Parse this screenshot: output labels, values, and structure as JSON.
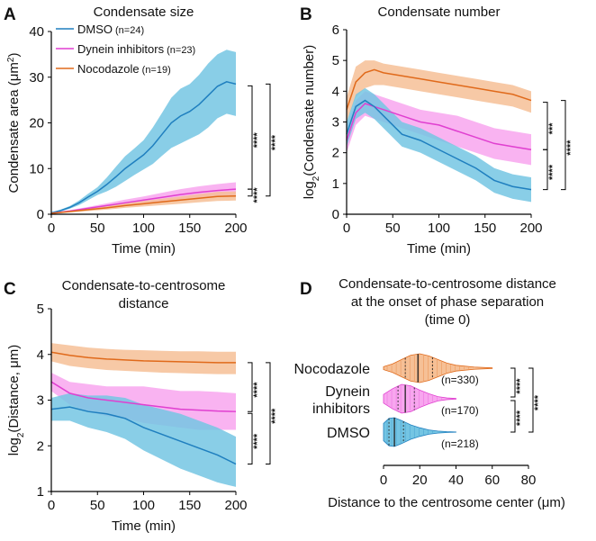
{
  "figure": {
    "colors": {
      "dmso": "#1f7fbf",
      "dmso_fill": "#74c5e3",
      "dynein": "#e03fd0",
      "dynein_fill": "#f8a6ef",
      "noco": "#e06a1b",
      "noco_fill": "#f6c096"
    }
  },
  "chart_data": [
    {
      "panel": "A",
      "type": "line",
      "title": "Condensate size",
      "xlabel": "Time (min)",
      "ylabel": "Condensate area (μm²)",
      "xlim": [
        0,
        200
      ],
      "ylim": [
        0,
        40
      ],
      "xticks": [
        "0",
        "50",
        "100",
        "150",
        "200"
      ],
      "yticks": [
        "0",
        "10",
        "20",
        "30",
        "40"
      ],
      "legend": [
        {
          "name": "DMSO",
          "n": "(n=24)",
          "color": "dmso"
        },
        {
          "name": "Dynein inhibitors",
          "n": "(n=23)",
          "color": "dynein"
        },
        {
          "name": "Nocodazole",
          "n": "(n=19)",
          "color": "noco"
        }
      ],
      "series": [
        {
          "name": "DMSO",
          "color": "dmso",
          "fill": "dmso_fill",
          "x": [
            0,
            10,
            20,
            30,
            40,
            50,
            60,
            70,
            80,
            90,
            100,
            110,
            120,
            130,
            140,
            150,
            160,
            170,
            180,
            190,
            200
          ],
          "mean": [
            0.3,
            0.8,
            1.5,
            2.5,
            3.8,
            5.0,
            6.5,
            8.2,
            10.0,
            11.5,
            13.0,
            15.0,
            17.5,
            20.0,
            21.5,
            22.5,
            24.0,
            26.0,
            28.0,
            29.0,
            28.5
          ],
          "lower": [
            0.2,
            0.6,
            1.2,
            2.0,
            3.1,
            4.2,
            5.0,
            6.0,
            7.3,
            8.6,
            9.8,
            11.0,
            12.8,
            14.5,
            15.5,
            16.5,
            17.5,
            19.0,
            21.0,
            22.0,
            21.5
          ],
          "upper": [
            0.4,
            1.0,
            1.8,
            3.0,
            4.5,
            5.9,
            8.0,
            10.4,
            12.7,
            14.4,
            16.2,
            19.0,
            22.2,
            25.5,
            27.5,
            28.5,
            30.5,
            33.0,
            35.0,
            36.0,
            35.5
          ]
        },
        {
          "name": "Dynein inhibitors",
          "color": "dynein",
          "fill": "dynein_fill",
          "x": [
            0,
            20,
            40,
            60,
            80,
            100,
            120,
            140,
            160,
            180,
            200
          ],
          "mean": [
            0.2,
            0.7,
            1.3,
            1.9,
            2.5,
            3.1,
            3.7,
            4.3,
            4.8,
            5.2,
            5.5
          ],
          "lower": [
            0.1,
            0.5,
            1.0,
            1.4,
            1.8,
            2.3,
            2.7,
            3.1,
            3.5,
            3.8,
            4.0
          ],
          "upper": [
            0.3,
            0.9,
            1.6,
            2.4,
            3.2,
            3.9,
            4.7,
            5.5,
            6.1,
            6.6,
            7.0
          ]
        },
        {
          "name": "Nocodazole",
          "color": "noco",
          "fill": "noco_fill",
          "x": [
            0,
            20,
            40,
            60,
            80,
            100,
            120,
            140,
            160,
            180,
            200
          ],
          "mean": [
            0.2,
            0.6,
            1.0,
            1.4,
            1.9,
            2.3,
            2.7,
            3.1,
            3.5,
            3.9,
            4.0
          ],
          "lower": [
            0.1,
            0.4,
            0.7,
            1.0,
            1.4,
            1.7,
            2.0,
            2.3,
            2.6,
            2.9,
            3.0
          ],
          "upper": [
            0.3,
            0.8,
            1.3,
            1.8,
            2.4,
            2.9,
            3.4,
            3.9,
            4.4,
            4.9,
            5.0
          ]
        }
      ],
      "significance": [
        {
          "pair": [
            "DMSO",
            "Nocodazole"
          ],
          "label": "****"
        },
        {
          "pair": [
            "DMSO",
            "Dynein inhibitors"
          ],
          "label": "****"
        },
        {
          "pair": [
            "Dynein inhibitors",
            "Nocodazole"
          ],
          "label": "****"
        }
      ]
    },
    {
      "panel": "B",
      "type": "line",
      "title": "Condensate number",
      "xlabel": "Time (min)",
      "ylabel": "log2(Condensate number)",
      "xlim": [
        0,
        200
      ],
      "ylim": [
        0,
        6
      ],
      "xticks": [
        "0",
        "50",
        "100",
        "150",
        "200"
      ],
      "yticks": [
        "0",
        "1",
        "2",
        "3",
        "4",
        "5",
        "6"
      ],
      "series": [
        {
          "name": "Nocodazole",
          "color": "noco",
          "fill": "noco_fill",
          "x": [
            0,
            10,
            20,
            30,
            40,
            60,
            80,
            100,
            120,
            140,
            160,
            180,
            200
          ],
          "mean": [
            3.4,
            4.3,
            4.6,
            4.7,
            4.6,
            4.5,
            4.4,
            4.3,
            4.2,
            4.1,
            4.0,
            3.9,
            3.7
          ],
          "lower": [
            3.0,
            3.8,
            4.1,
            4.2,
            4.2,
            4.1,
            4.0,
            3.9,
            3.8,
            3.7,
            3.6,
            3.5,
            3.3
          ],
          "upper": [
            3.8,
            4.8,
            5.0,
            5.0,
            4.9,
            4.8,
            4.7,
            4.6,
            4.5,
            4.4,
            4.3,
            4.2,
            4.0
          ]
        },
        {
          "name": "Dynein inhibitors",
          "color": "dynein",
          "fill": "dynein_fill",
          "x": [
            0,
            10,
            20,
            30,
            40,
            60,
            80,
            100,
            120,
            140,
            160,
            180,
            200
          ],
          "mean": [
            2.4,
            3.3,
            3.6,
            3.5,
            3.4,
            3.2,
            3.0,
            2.9,
            2.7,
            2.5,
            2.3,
            2.2,
            2.1
          ],
          "lower": [
            2.0,
            2.9,
            3.2,
            3.1,
            3.0,
            2.8,
            2.6,
            2.4,
            2.2,
            2.0,
            1.8,
            1.7,
            1.6
          ],
          "upper": [
            2.8,
            3.7,
            4.0,
            3.9,
            3.8,
            3.6,
            3.4,
            3.3,
            3.2,
            3.0,
            2.8,
            2.7,
            2.6
          ]
        },
        {
          "name": "DMSO",
          "color": "dmso",
          "fill": "dmso_fill",
          "x": [
            0,
            10,
            20,
            30,
            40,
            50,
            60,
            80,
            100,
            120,
            140,
            160,
            180,
            200
          ],
          "mean": [
            2.6,
            3.5,
            3.7,
            3.5,
            3.2,
            2.9,
            2.6,
            2.4,
            2.1,
            1.8,
            1.5,
            1.1,
            0.9,
            0.8
          ],
          "lower": [
            2.2,
            3.1,
            3.3,
            3.1,
            2.8,
            2.5,
            2.2,
            2.0,
            1.7,
            1.4,
            1.1,
            0.7,
            0.5,
            0.4
          ],
          "upper": [
            3.0,
            3.9,
            4.1,
            3.9,
            3.6,
            3.3,
            3.0,
            2.8,
            2.5,
            2.2,
            1.9,
            1.5,
            1.3,
            1.2
          ]
        }
      ],
      "significance": [
        {
          "pair": [
            "Nocodazole",
            "Dynein inhibitors"
          ],
          "label": "***"
        },
        {
          "pair": [
            "Nocodazole",
            "DMSO"
          ],
          "label": "****"
        },
        {
          "pair": [
            "Dynein inhibitors",
            "DMSO"
          ],
          "label": "****"
        }
      ]
    },
    {
      "panel": "C",
      "type": "line",
      "title": "Condensate-to-centrosome",
      "title2": "distance",
      "xlabel": "Time (min)",
      "ylabel": "log2(Distance, μm)",
      "xlim": [
        0,
        200
      ],
      "ylim": [
        1,
        5
      ],
      "xticks": [
        "0",
        "50",
        "100",
        "150",
        "200"
      ],
      "yticks": [
        "1",
        "2",
        "3",
        "4",
        "5"
      ],
      "series": [
        {
          "name": "Nocodazole",
          "color": "noco",
          "fill": "noco_fill",
          "x": [
            0,
            20,
            40,
            60,
            80,
            100,
            120,
            140,
            160,
            180,
            200
          ],
          "mean": [
            4.05,
            3.98,
            3.93,
            3.9,
            3.88,
            3.86,
            3.85,
            3.84,
            3.83,
            3.82,
            3.82
          ],
          "lower": [
            3.85,
            3.75,
            3.7,
            3.66,
            3.64,
            3.62,
            3.6,
            3.59,
            3.58,
            3.57,
            3.57
          ],
          "upper": [
            4.25,
            4.2,
            4.15,
            4.12,
            4.1,
            4.09,
            4.08,
            4.07,
            4.07,
            4.06,
            4.06
          ]
        },
        {
          "name": "Dynein inhibitors",
          "color": "dynein",
          "fill": "dynein_fill",
          "x": [
            0,
            20,
            40,
            60,
            80,
            100,
            120,
            140,
            160,
            180,
            200
          ],
          "mean": [
            3.4,
            3.15,
            3.05,
            3.0,
            2.95,
            2.9,
            2.85,
            2.8,
            2.78,
            2.76,
            2.75
          ],
          "lower": [
            3.2,
            2.9,
            2.75,
            2.65,
            2.6,
            2.5,
            2.45,
            2.4,
            2.35,
            2.35,
            2.35
          ],
          "upper": [
            3.6,
            3.4,
            3.35,
            3.3,
            3.3,
            3.3,
            3.25,
            3.2,
            3.2,
            3.18,
            3.15
          ]
        },
        {
          "name": "DMSO",
          "color": "dmso",
          "fill": "dmso_fill",
          "x": [
            0,
            20,
            40,
            60,
            80,
            100,
            120,
            140,
            160,
            180,
            200
          ],
          "mean": [
            2.8,
            2.85,
            2.75,
            2.7,
            2.6,
            2.4,
            2.25,
            2.1,
            1.95,
            1.8,
            1.6
          ],
          "lower": [
            2.55,
            2.55,
            2.4,
            2.3,
            2.15,
            1.9,
            1.7,
            1.5,
            1.35,
            1.2,
            1.1
          ],
          "upper": [
            3.05,
            3.15,
            3.1,
            3.1,
            3.05,
            2.9,
            2.8,
            2.7,
            2.55,
            2.4,
            2.2
          ]
        }
      ],
      "significance": [
        {
          "pair": [
            "Nocodazole",
            "Dynein inhibitors"
          ],
          "label": "****"
        },
        {
          "pair": [
            "Nocodazole",
            "DMSO"
          ],
          "label": "****"
        },
        {
          "pair": [
            "Dynein inhibitors",
            "DMSO"
          ],
          "label": "****"
        }
      ]
    },
    {
      "panel": "D",
      "type": "violin",
      "title": "Condensate-to-centrosome distance",
      "title2": "at the onset of phase separation",
      "title3": "(time 0)",
      "xlabel": "Distance to the centrosome center (μm)",
      "xlim": [
        0,
        80
      ],
      "xticks": [
        "0",
        "20",
        "40",
        "60",
        "80"
      ],
      "groups": [
        {
          "name": "Nocodazole",
          "lines": [
            "Nocodazole"
          ],
          "n": "(n=330)",
          "color": "noco",
          "fill": "noco_fill",
          "x": [
            0,
            5,
            10,
            15,
            20,
            25,
            30,
            35,
            40,
            50,
            60
          ],
          "density": [
            0.1,
            0.3,
            0.6,
            0.9,
            1.0,
            0.85,
            0.6,
            0.35,
            0.2,
            0.08,
            0.02
          ],
          "median": 19,
          "q1": 12,
          "q3": 27
        },
        {
          "name": "Dynein inhibitors",
          "lines": [
            "Dynein",
            "inhibitors"
          ],
          "n": "(n=170)",
          "color": "dynein",
          "fill": "dynein_fill",
          "x": [
            0,
            5,
            10,
            15,
            20,
            25,
            30,
            35,
            40
          ],
          "density": [
            0.3,
            0.7,
            1.0,
            0.9,
            0.6,
            0.35,
            0.15,
            0.06,
            0.02
          ],
          "median": 12,
          "q1": 8,
          "q3": 17
        },
        {
          "name": "DMSO",
          "lines": [
            "DMSO"
          ],
          "n": "(n=218)",
          "color": "dmso",
          "fill": "dmso_fill",
          "x": [
            0,
            3,
            6,
            10,
            15,
            20,
            25,
            30,
            35,
            40
          ],
          "density": [
            0.6,
            0.95,
            1.0,
            0.8,
            0.5,
            0.3,
            0.15,
            0.07,
            0.03,
            0.01
          ],
          "median": 6,
          "q1": 3,
          "q3": 11
        }
      ],
      "significance": [
        {
          "pair": [
            "Nocodazole",
            "Dynein inhibitors"
          ],
          "label": "****"
        },
        {
          "pair": [
            "Nocodazole",
            "DMSO"
          ],
          "label": "****"
        },
        {
          "pair": [
            "Dynein inhibitors",
            "DMSO"
          ],
          "label": "****"
        }
      ]
    }
  ]
}
